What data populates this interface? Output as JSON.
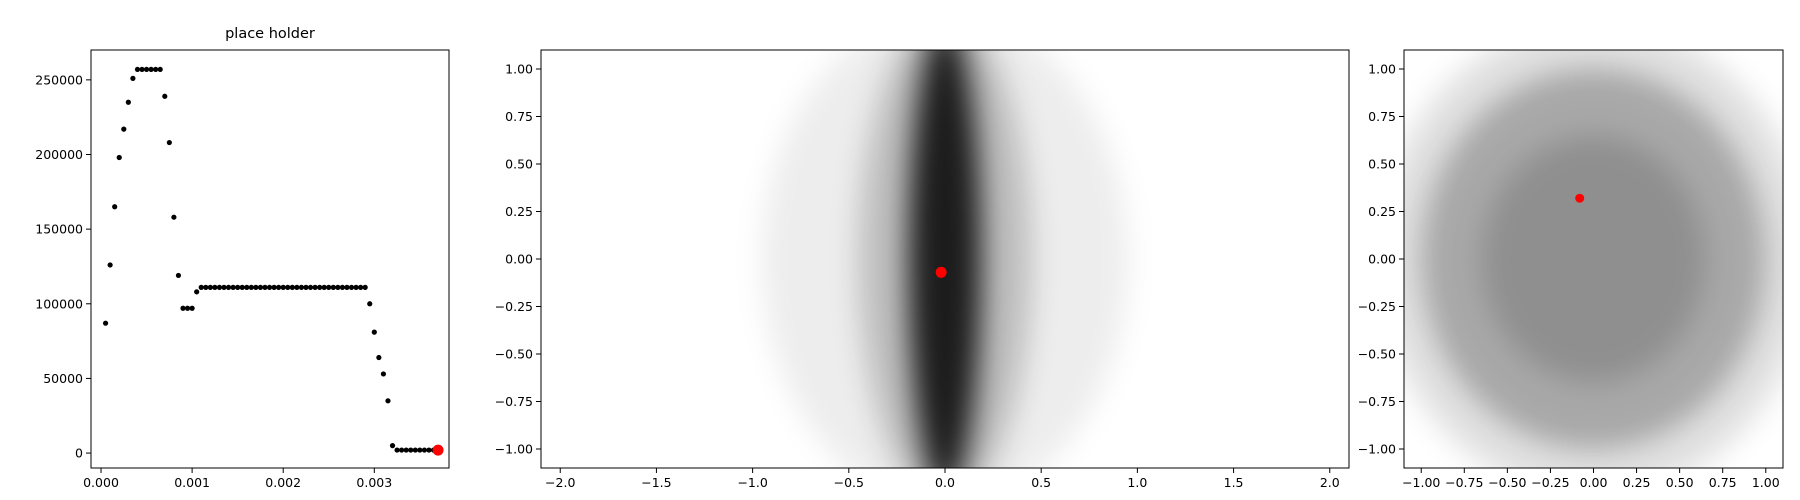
{
  "chart_data": [
    {
      "type": "scatter",
      "title": "place holder",
      "series": [
        {
          "color": "#000000",
          "size": 2.6,
          "x": [
            5e-05,
            0.0001,
            0.00015,
            0.0002,
            0.00025,
            0.0003,
            0.00035,
            0.0004,
            0.00045,
            0.0005,
            0.00055,
            0.0006,
            0.00065,
            0.0007,
            0.00075,
            0.0008,
            0.00085,
            0.0009,
            0.00095,
            0.001,
            0.00105,
            0.0011,
            0.00115,
            0.0012,
            0.00125,
            0.0013,
            0.00135,
            0.0014,
            0.00145,
            0.0015,
            0.00155,
            0.0016,
            0.00165,
            0.0017,
            0.00175,
            0.0018,
            0.00185,
            0.0019,
            0.00195,
            0.002,
            0.00205,
            0.0021,
            0.00215,
            0.0022,
            0.00225,
            0.0023,
            0.00235,
            0.0024,
            0.00245,
            0.0025,
            0.00255,
            0.0026,
            0.00265,
            0.0027,
            0.00275,
            0.0028,
            0.00285,
            0.0029,
            0.00295,
            0.003,
            0.00305,
            0.0031,
            0.00315,
            0.0032,
            0.00325,
            0.0033,
            0.00335,
            0.0034,
            0.00345,
            0.0035,
            0.00355,
            0.0036,
            0.00365
          ],
          "values": [
            87000,
            126000,
            165000,
            198000,
            217000,
            235000,
            251000,
            257000,
            257000,
            257000,
            257000,
            257000,
            257000,
            239000,
            208000,
            158000,
            119000,
            97000,
            97000,
            97000,
            108000,
            111000,
            111000,
            111000,
            111000,
            111000,
            111000,
            111000,
            111000,
            111000,
            111000,
            111000,
            111000,
            111000,
            111000,
            111000,
            111000,
            111000,
            111000,
            111000,
            111000,
            111000,
            111000,
            111000,
            111000,
            111000,
            111000,
            111000,
            111000,
            111000,
            111000,
            111000,
            111000,
            111000,
            111000,
            111000,
            111000,
            111000,
            100000,
            81000,
            64000,
            53000,
            35000,
            5000,
            2000,
            2000,
            2000,
            2000,
            2000,
            2000,
            2000,
            2000,
            2000
          ]
        },
        {
          "color": "#ff0000",
          "size": 5.5,
          "x": [
            0.0037
          ],
          "values": [
            2000
          ]
        }
      ],
      "xlim": [
        -0.00011,
        0.00382
      ],
      "ylim": [
        -10000,
        270000
      ],
      "xticks": [
        {
          "value": 0,
          "label": "0.000"
        },
        {
          "value": 0.001,
          "label": "0.001"
        },
        {
          "value": 0.002,
          "label": "0.002"
        },
        {
          "value": 0.003,
          "label": "0.003"
        }
      ],
      "yticks": [
        0,
        50000,
        100000,
        150000,
        200000,
        250000
      ]
    },
    {
      "type": "scatter",
      "density": [
        {
          "x": 0,
          "y": 0,
          "rx": 0.95,
          "ry": 1.3,
          "opacity": 0.07
        },
        {
          "x": 0,
          "y": 0,
          "rx": 0.45,
          "ry": 1.3,
          "opacity": 0.2
        },
        {
          "x": 0,
          "y": 0,
          "rx": 0.19,
          "ry": 1.25,
          "opacity": 0.85
        }
      ],
      "series": [
        {
          "color": "#ff0000",
          "size": 5.5,
          "x": [
            -0.02
          ],
          "values": [
            -0.07
          ]
        }
      ],
      "xlim": [
        -2.1,
        2.1
      ],
      "ylim": [
        -1.1,
        1.1
      ],
      "xticks": [
        {
          "value": -2,
          "label": "−2.0"
        },
        {
          "value": -1.5,
          "label": "−1.5"
        },
        {
          "value": -1,
          "label": "−1.0"
        },
        {
          "value": -0.5,
          "label": "−0.5"
        },
        {
          "value": 0,
          "label": "0.0"
        },
        {
          "value": 0.5,
          "label": "0.5"
        },
        {
          "value": 1,
          "label": "1.0"
        },
        {
          "value": 1.5,
          "label": "1.5"
        },
        {
          "value": 2,
          "label": "2.0"
        }
      ],
      "yticks": [
        {
          "value": -1,
          "label": "−1.00"
        },
        {
          "value": -0.75,
          "label": "−0.75"
        },
        {
          "value": -0.5,
          "label": "−0.50"
        },
        {
          "value": -0.25,
          "label": "−0.25"
        },
        {
          "value": 0,
          "label": "0.00"
        },
        {
          "value": 0.25,
          "label": "0.25"
        },
        {
          "value": 0.5,
          "label": "0.50"
        },
        {
          "value": 0.75,
          "label": "0.75"
        },
        {
          "value": 1,
          "label": "1.00"
        }
      ]
    },
    {
      "type": "scatter",
      "density": [
        {
          "x": 0,
          "y": 0,
          "rx": 1.25,
          "ry": 1.25,
          "opacity": 0.12
        },
        {
          "x": 0,
          "y": 0,
          "rx": 1.0,
          "ry": 1.0,
          "opacity": 0.25
        },
        {
          "x": 0,
          "y": 0,
          "rx": 0.65,
          "ry": 0.65,
          "opacity": 0.15
        }
      ],
      "series": [
        {
          "color": "#ff0000",
          "size": 4.5,
          "x": [
            -0.08
          ],
          "values": [
            0.32
          ]
        }
      ],
      "xlim": [
        -1.1,
        1.1
      ],
      "ylim": [
        -1.1,
        1.1
      ],
      "xticks": [
        {
          "value": -1,
          "label": "−1.00"
        },
        {
          "value": -0.75,
          "label": "−0.75"
        },
        {
          "value": -0.5,
          "label": "−0.50"
        },
        {
          "value": -0.25,
          "label": "−0.25"
        },
        {
          "value": 0,
          "label": "0.00"
        },
        {
          "value": 0.25,
          "label": "0.25"
        },
        {
          "value": 0.5,
          "label": "0.50"
        },
        {
          "value": 0.75,
          "label": "0.75"
        },
        {
          "value": 1,
          "label": "1.00"
        }
      ],
      "yticks": [
        {
          "value": -1,
          "label": "−1.00"
        },
        {
          "value": -0.75,
          "label": "−0.75"
        },
        {
          "value": -0.5,
          "label": "−0.50"
        },
        {
          "value": -0.25,
          "label": "−0.25"
        },
        {
          "value": 0,
          "label": "0.00"
        },
        {
          "value": 0.25,
          "label": "0.25"
        },
        {
          "value": 0.5,
          "label": "0.50"
        },
        {
          "value": 0.75,
          "label": "0.75"
        },
        {
          "value": 1,
          "label": "1.00"
        }
      ]
    }
  ]
}
